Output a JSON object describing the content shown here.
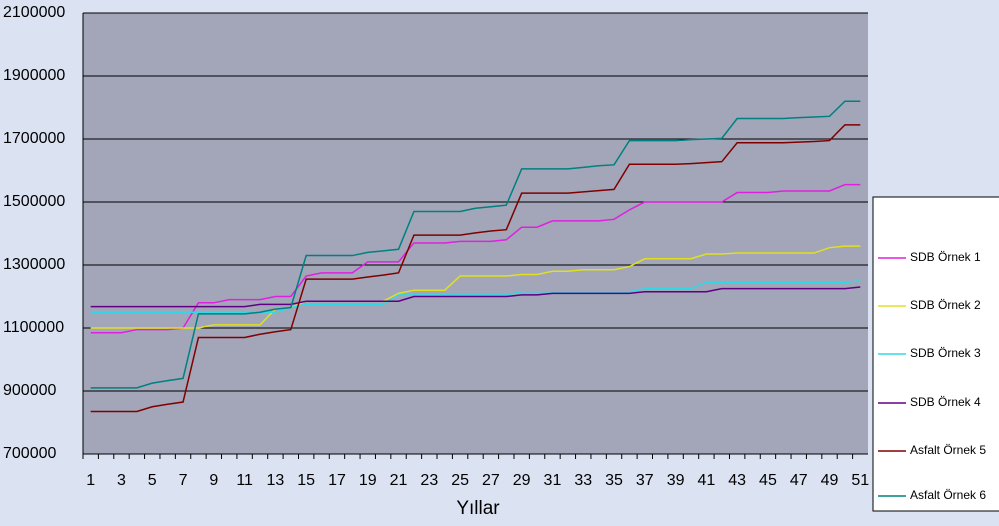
{
  "chart_data": {
    "type": "line",
    "x_label": "Yıllar",
    "categories": [
      "1",
      null,
      "3",
      null,
      "5",
      null,
      "7",
      null,
      "9",
      null,
      "11",
      null,
      "13",
      null,
      "15",
      null,
      "17",
      null,
      "19",
      null,
      "21",
      null,
      "23",
      null,
      "25",
      null,
      "27",
      null,
      "29",
      null,
      "31",
      null,
      "33",
      null,
      "35",
      null,
      "37",
      null,
      "39",
      null,
      "41",
      null,
      "43",
      null,
      "45",
      null,
      "47",
      null,
      "49",
      null,
      "51"
    ],
    "ylim": [
      700000,
      2100000
    ],
    "yticks": [
      700000,
      900000,
      1100000,
      1300000,
      1500000,
      1700000,
      1900000,
      2100000
    ],
    "grid": true,
    "legend": "right",
    "series": [
      {
        "name": "SDB Örnek 1",
        "color": "#e020e0",
        "values": [
          1085000,
          1085000,
          1085000,
          1095000,
          1095000,
          1095000,
          1100000,
          1180000,
          1180000,
          1190000,
          1190000,
          1190000,
          1200000,
          1200000,
          1265000,
          1275000,
          1275000,
          1275000,
          1310000,
          1310000,
          1310000,
          1370000,
          1370000,
          1370000,
          1375000,
          1375000,
          1375000,
          1380000,
          1420000,
          1420000,
          1440000,
          1440000,
          1440000,
          1440000,
          1445000,
          1475000,
          1500000,
          1500000,
          1500000,
          1500000,
          1500000,
          1500000,
          1530000,
          1530000,
          1530000,
          1535000,
          1535000,
          1535000,
          1535000,
          1555000,
          1555000
        ]
      },
      {
        "name": "SDB Örnek 2",
        "color": "#e0e020",
        "values": [
          1100000,
          1100000,
          1100000,
          1100000,
          1100000,
          1100000,
          1100000,
          1100000,
          1110000,
          1110000,
          1110000,
          1110000,
          1160000,
          1165000,
          1185000,
          1185000,
          1185000,
          1185000,
          1185000,
          1185000,
          1210000,
          1220000,
          1220000,
          1220000,
          1265000,
          1265000,
          1265000,
          1265000,
          1270000,
          1270000,
          1280000,
          1280000,
          1285000,
          1285000,
          1285000,
          1295000,
          1320000,
          1320000,
          1320000,
          1320000,
          1335000,
          1335000,
          1338000,
          1338000,
          1338000,
          1338000,
          1338000,
          1338000,
          1355000,
          1360000,
          1360000
        ]
      },
      {
        "name": "SDB Örnek 3",
        "color": "#30d8e8",
        "values": [
          1150000,
          1150000,
          1150000,
          1150000,
          1150000,
          1150000,
          1150000,
          1150000,
          1150000,
          1150000,
          1150000,
          1150000,
          1150000,
          1165000,
          1175000,
          1175000,
          1175000,
          1175000,
          1175000,
          1175000,
          1205000,
          1205000,
          1205000,
          1205000,
          1205000,
          1205000,
          1205000,
          1205000,
          1215000,
          1215000,
          1215000,
          1215000,
          1215000,
          1215000,
          1215000,
          1215000,
          1225000,
          1225000,
          1225000,
          1225000,
          1245000,
          1245000,
          1245000,
          1245000,
          1245000,
          1245000,
          1245000,
          1245000,
          1245000,
          1245000,
          1250000
        ]
      },
      {
        "name": "SDB Örnek 4",
        "color": "#600080",
        "values": [
          1168000,
          1168000,
          1168000,
          1168000,
          1168000,
          1168000,
          1168000,
          1168000,
          1168000,
          1168000,
          1168000,
          1175000,
          1175000,
          1175000,
          1185000,
          1185000,
          1185000,
          1185000,
          1185000,
          1185000,
          1185000,
          1200000,
          1200000,
          1200000,
          1200000,
          1200000,
          1200000,
          1200000,
          1205000,
          1205000,
          1210000,
          1210000,
          1210000,
          1210000,
          1210000,
          1210000,
          1215000,
          1215000,
          1215000,
          1215000,
          1215000,
          1225000,
          1225000,
          1225000,
          1225000,
          1225000,
          1225000,
          1225000,
          1225000,
          1225000,
          1230000
        ]
      },
      {
        "name": "Asfalt Örnek 5",
        "color": "#800000",
        "values": [
          835000,
          835000,
          835000,
          835000,
          850000,
          858000,
          865000,
          1070000,
          1070000,
          1070000,
          1070000,
          1080000,
          1088000,
          1095000,
          1255000,
          1255000,
          1255000,
          1255000,
          1262000,
          1268000,
          1275000,
          1395000,
          1395000,
          1395000,
          1395000,
          1402000,
          1408000,
          1412000,
          1528000,
          1528000,
          1528000,
          1528000,
          1532000,
          1536000,
          1540000,
          1620000,
          1620000,
          1620000,
          1620000,
          1622000,
          1625000,
          1628000,
          1688000,
          1688000,
          1688000,
          1688000,
          1690000,
          1692000,
          1695000,
          1745000,
          1745000
        ]
      },
      {
        "name": "Asfalt Örnek 6",
        "color": "#008080",
        "values": [
          910000,
          910000,
          910000,
          910000,
          925000,
          933000,
          940000,
          1145000,
          1145000,
          1145000,
          1145000,
          1150000,
          1160000,
          1165000,
          1330000,
          1330000,
          1330000,
          1330000,
          1340000,
          1345000,
          1350000,
          1470000,
          1470000,
          1470000,
          1470000,
          1480000,
          1485000,
          1490000,
          1605000,
          1605000,
          1605000,
          1605000,
          1610000,
          1615000,
          1618000,
          1695000,
          1695000,
          1695000,
          1695000,
          1698000,
          1700000,
          1702000,
          1765000,
          1765000,
          1765000,
          1765000,
          1768000,
          1770000,
          1772000,
          1820000,
          1820000
        ]
      }
    ]
  }
}
